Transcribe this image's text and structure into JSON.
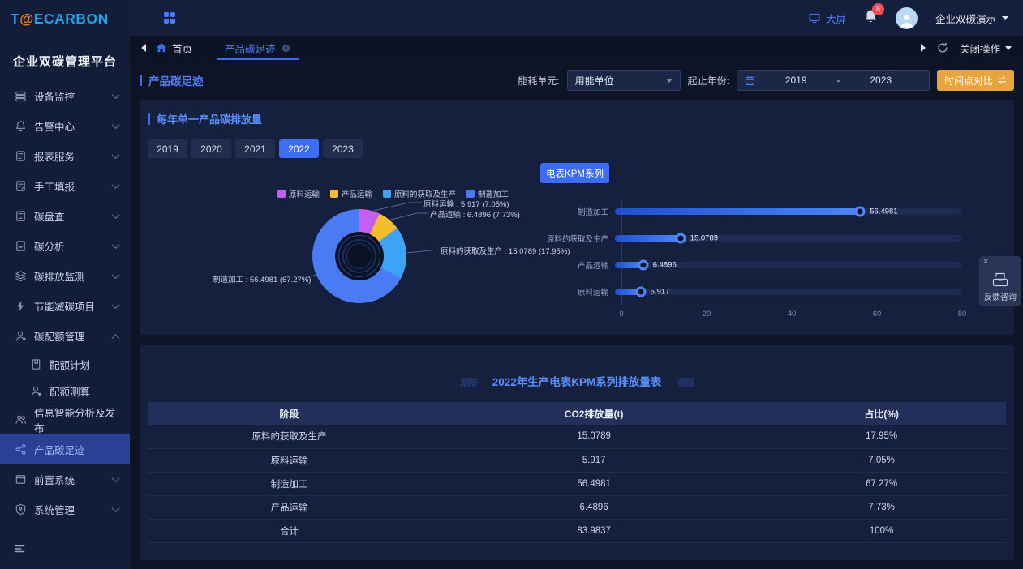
{
  "sidebar": {
    "logo_t": "T",
    "logo_at": "@",
    "logo_rest": "ECARBON",
    "platform_title": "企业双碳管理平台",
    "items": [
      {
        "label": "设备监控"
      },
      {
        "label": "告警中心"
      },
      {
        "label": "报表服务"
      },
      {
        "label": "手工填报"
      },
      {
        "label": "碳盘查"
      },
      {
        "label": "碳分析"
      },
      {
        "label": "碳排放监测"
      },
      {
        "label": "节能减碳项目"
      },
      {
        "label": "碳配额管理"
      },
      {
        "label": "配额计划"
      },
      {
        "label": "配额测算"
      },
      {
        "label": "信息智能分析及发布"
      },
      {
        "label": "产品碳足迹"
      },
      {
        "label": "前置系统"
      },
      {
        "label": "系统管理"
      }
    ]
  },
  "header": {
    "screen_label": "大屏",
    "notification_count": "8",
    "account_name": "企业双碳演示"
  },
  "tabbar": {
    "home_label": "首页",
    "active_tab": "产品碳足迹",
    "close_ops_label": "关闭操作"
  },
  "filters": {
    "page_title": "产品碳足迹",
    "energy_unit_label": "能耗单元:",
    "energy_unit_value": "用能单位",
    "year_range_label": "起止年份:",
    "year_start": "2019",
    "year_separator": "-",
    "year_end": "2023",
    "compare_button": "时间点对比"
  },
  "panel1": {
    "title": "每年单一产品碳排放量",
    "years": [
      "2019",
      "2020",
      "2021",
      "2022",
      "2023"
    ],
    "active_year": "2022",
    "series_button": "电表KPM系列"
  },
  "chart_data": [
    {
      "type": "pie",
      "title": "每年单一产品碳排放量",
      "labels": [
        "原料运输",
        "产品运输",
        "原料的获取及生产",
        "制造加工"
      ],
      "values": [
        5.917,
        6.4896,
        15.0789,
        56.4981
      ],
      "percents": [
        "7.05%",
        "7.73%",
        "17.95%",
        "67.27%"
      ],
      "colors": [
        "#c75ef0",
        "#f5bd2c",
        "#3ca4f6",
        "#4a7bf5"
      ],
      "donut": true,
      "legend_position": "top",
      "callouts": [
        "原料运输 : 5.917 (7.05%)",
        "产品运输 : 6.4896 (7.73%)",
        "原料的获取及生产 : 15.0789 (17.95%)",
        "制造加工 : 56.4981 (67.27%)"
      ]
    },
    {
      "type": "bar",
      "orientation": "horizontal",
      "categories": [
        "制造加工",
        "原料的获取及生产",
        "产品运输",
        "原料运输"
      ],
      "values": [
        56.4981,
        15.0789,
        6.4896,
        5.917
      ],
      "value_labels": [
        "56.4981",
        "15.0789",
        "6.4896",
        "5.917"
      ],
      "xlim": [
        0,
        80
      ],
      "xticks": [
        "0",
        "20",
        "40",
        "60",
        "80"
      ],
      "grid": false
    }
  ],
  "table": {
    "deco_left": "》》》》》",
    "title": "2022年生产电表KPM系列排放量表",
    "deco_right": "《《《《《",
    "headers": [
      "阶段",
      "CO2排放量(t)",
      "占比(%)"
    ],
    "rows": [
      [
        "原料的获取及生产",
        "15.0789",
        "17.95%"
      ],
      [
        "原料运输",
        "5.917",
        "7.05%"
      ],
      [
        "制造加工",
        "56.4981",
        "67.27%"
      ],
      [
        "产品运输",
        "6.4896",
        "7.73%"
      ],
      [
        "合计",
        "83.9837",
        "100%"
      ]
    ]
  },
  "feedback": {
    "close": "×",
    "label": "反馈咨询"
  }
}
